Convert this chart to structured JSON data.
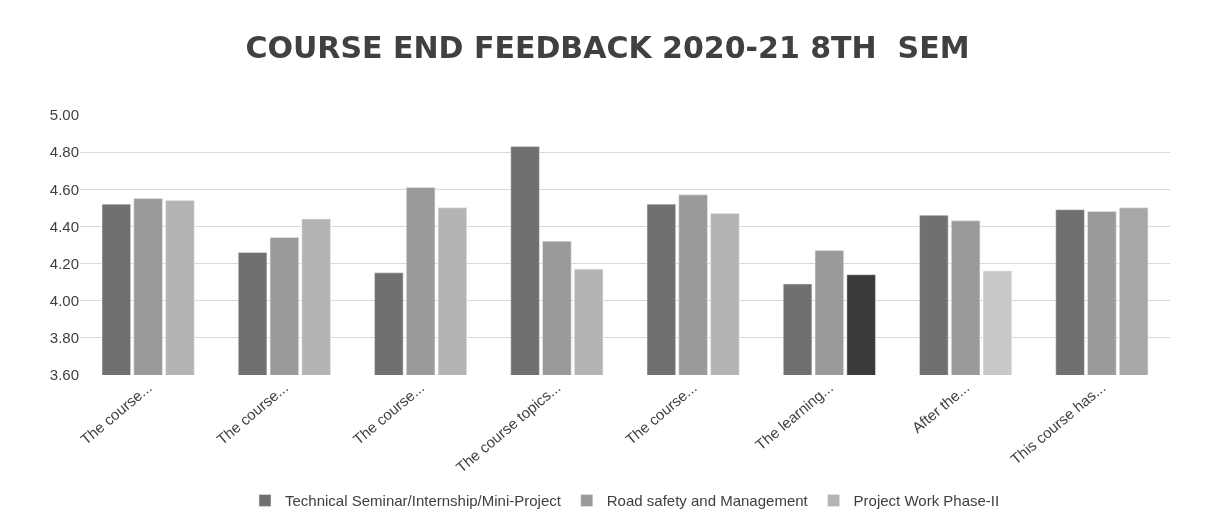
{
  "chart_data": {
    "type": "bar",
    "title": "COURSE END FEEDBACK 2020-21 8TH  SEM",
    "categories": [
      "The course...",
      "The course...",
      "The course...",
      "The course topics...",
      "The course...",
      "The learning...",
      "After the...",
      "This course has..."
    ],
    "series": [
      {
        "name": "Technical Seminar/Internship/Mini-Project",
        "color": "#707070",
        "values": [
          4.52,
          4.26,
          4.15,
          4.83,
          4.52,
          4.09,
          4.46,
          4.49
        ]
      },
      {
        "name": "Road safety and Management",
        "color": "#9a9a9a",
        "values": [
          4.55,
          4.34,
          4.61,
          4.32,
          4.57,
          4.27,
          4.43,
          4.48
        ]
      },
      {
        "name": "Project Work Phase-II",
        "color": "#b4b4b4",
        "colors": [
          "#b4b4b4",
          "#b4b4b4",
          "#b4b4b4",
          "#b4b4b4",
          "#b4b4b4",
          "#3a3a3a",
          "#c8c8c8",
          "#a8a8a8"
        ],
        "values": [
          4.54,
          4.44,
          4.5,
          4.17,
          4.47,
          4.14,
          4.16,
          4.5
        ]
      }
    ],
    "ylim": [
      3.6,
      5.0
    ],
    "yticks": [
      {
        "value": 3.6,
        "label": "3.60"
      },
      {
        "value": 3.8,
        "label": "3.80"
      },
      {
        "value": 4.0,
        "label": "4.00"
      },
      {
        "value": 4.2,
        "label": "4.20"
      },
      {
        "value": 4.4,
        "label": "4.40"
      },
      {
        "value": 4.6,
        "label": "4.60"
      },
      {
        "value": 4.8,
        "label": "4.80"
      },
      {
        "value": 5.0,
        "label": "5.00"
      }
    ],
    "grid": "y",
    "legend": "bottom"
  }
}
